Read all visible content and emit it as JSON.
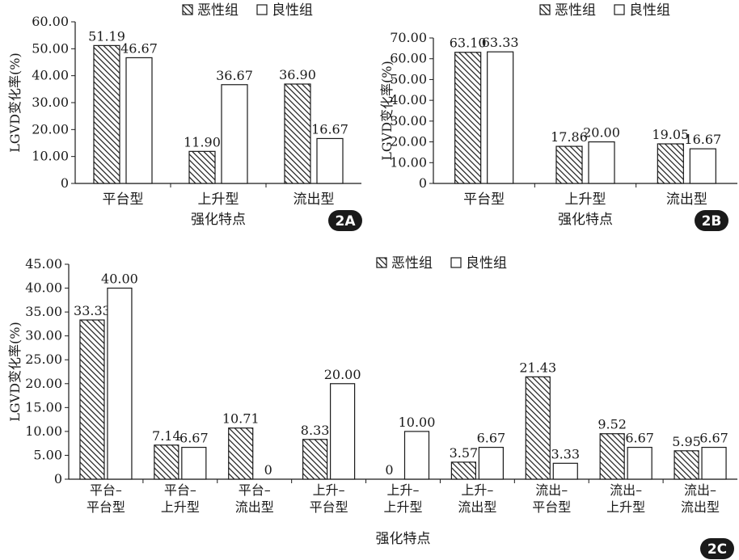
{
  "legend": {
    "malignant": "恶性组",
    "benign": "良性组"
  },
  "colors": {
    "ink": "#1a1a1a",
    "hatch": "#1a1a1a",
    "fill_benign": "#ffffff"
  },
  "chart_data": [
    {
      "id": "2A",
      "type": "bar",
      "badge": "2A",
      "ylabel": "LGVD变化率(%)",
      "xlabel": "强化特点",
      "ylim": [
        0,
        60
      ],
      "yticks": [
        0,
        10,
        20,
        30,
        40,
        50,
        60
      ],
      "ytick_labels": [
        "0",
        "10.00",
        "20.00",
        "30.00",
        "40.00",
        "50.00",
        "60.00"
      ],
      "categories": [
        "平台型",
        "上升型",
        "流出型"
      ],
      "series": [
        {
          "name": "恶性组",
          "values": [
            51.19,
            11.9,
            36.9
          ],
          "labels": [
            "51.19",
            "11.90",
            "36.90"
          ]
        },
        {
          "name": "良性组",
          "values": [
            46.67,
            36.67,
            16.67
          ],
          "labels": [
            "46.67",
            "36.67",
            "16.67"
          ]
        }
      ],
      "grid": false,
      "legend_position": "top-right"
    },
    {
      "id": "2B",
      "type": "bar",
      "badge": "2B",
      "ylabel": "LGVD变化率(%)",
      "xlabel": "强化特点",
      "ylim": [
        0,
        70
      ],
      "yticks": [
        0,
        10,
        20,
        30,
        40,
        50,
        60,
        70
      ],
      "ytick_labels": [
        "0",
        "10.00",
        "20.00",
        "30.00",
        "40.00",
        "50.00",
        "60.00",
        "70.00"
      ],
      "categories": [
        "平台型",
        "上升型",
        "流出型"
      ],
      "series": [
        {
          "name": "恶性组",
          "values": [
            63.1,
            17.86,
            19.05
          ],
          "labels": [
            "63.10",
            "17.86",
            "19.05"
          ]
        },
        {
          "name": "良性组",
          "values": [
            63.33,
            20.0,
            16.67
          ],
          "labels": [
            "63.33",
            "20.00",
            "16.67"
          ]
        }
      ],
      "grid": false,
      "legend_position": "top-right"
    },
    {
      "id": "2C",
      "type": "bar",
      "badge": "2C",
      "ylabel": "LGVD变化率(%)",
      "xlabel": "强化特点",
      "ylim": [
        0,
        45
      ],
      "yticks": [
        0,
        5,
        10,
        15,
        20,
        25,
        30,
        35,
        40,
        45
      ],
      "ytick_labels": [
        "0",
        "5.00",
        "10.00",
        "15.00",
        "20.00",
        "25.00",
        "30.00",
        "35.00",
        "40.00",
        "45.00"
      ],
      "categories": [
        "平台–平台型",
        "平台–上升型",
        "平台–流出型",
        "上升–平台型",
        "上升–上升型",
        "上升–流出型",
        "流出–平台型",
        "流出–上升型",
        "流出–流出型"
      ],
      "category_lines": [
        [
          "平台–",
          "平台型"
        ],
        [
          "平台–",
          "上升型"
        ],
        [
          "平台–",
          "流出型"
        ],
        [
          "上升–",
          "平台型"
        ],
        [
          "上升–",
          "上升型"
        ],
        [
          "上升–",
          "流出型"
        ],
        [
          "流出–",
          "平台型"
        ],
        [
          "流出–",
          "上升型"
        ],
        [
          "流出–",
          "流出型"
        ]
      ],
      "series": [
        {
          "name": "恶性组",
          "values": [
            33.33,
            7.14,
            10.71,
            8.33,
            0,
            3.57,
            21.43,
            9.52,
            5.95
          ],
          "labels": [
            "33.33",
            "7.14",
            "10.71",
            "8.33",
            "0",
            "3.57",
            "21.43",
            "9.52",
            "5.95"
          ]
        },
        {
          "name": "良性组",
          "values": [
            40.0,
            6.67,
            0,
            20.0,
            10.0,
            6.67,
            3.33,
            6.67,
            6.67
          ],
          "labels": [
            "40.00",
            "6.67",
            "0",
            "20.00",
            "10.00",
            "6.67",
            "3.33",
            "6.67",
            "6.67"
          ]
        }
      ],
      "grid": false,
      "legend_position": "top-right"
    }
  ]
}
